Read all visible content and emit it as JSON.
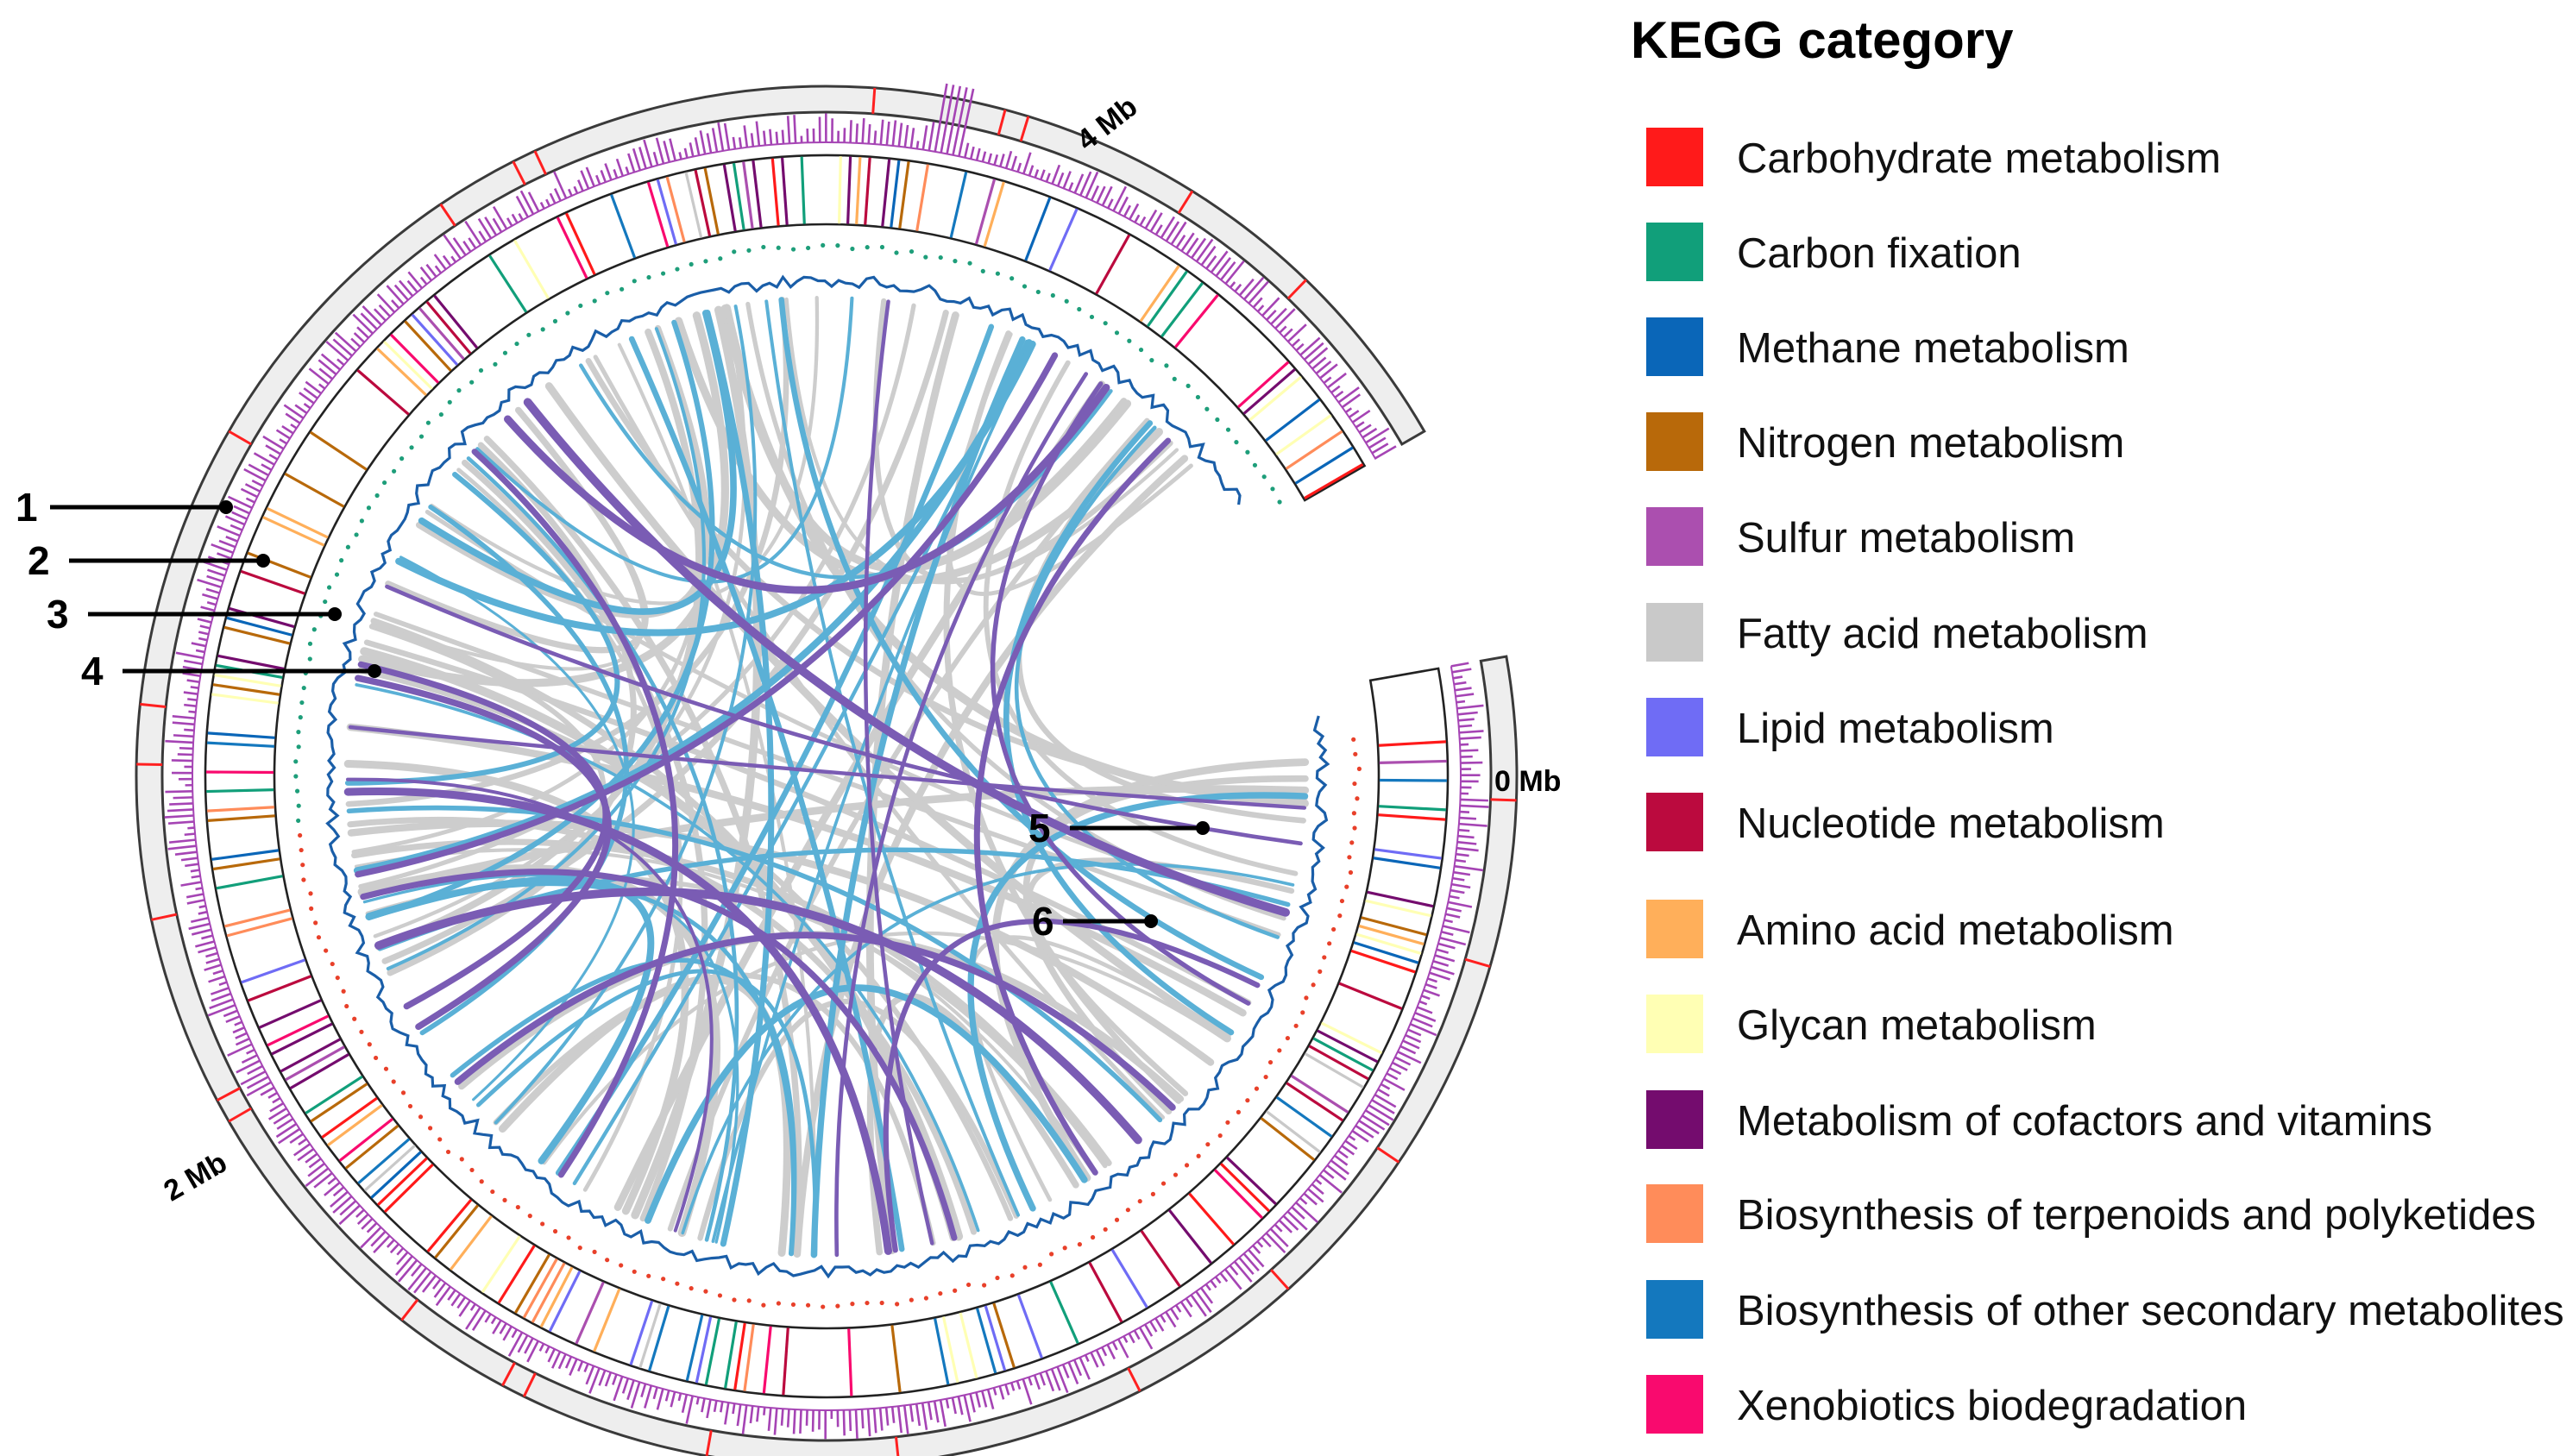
{
  "diagram": {
    "type": "circos-genome-map",
    "scale_labels": [
      "0 Mb",
      "2 Mb",
      "4 Mb"
    ],
    "track_labels": [
      "1",
      "2",
      "3",
      "4",
      "5",
      "6"
    ]
  },
  "colors": {
    "outer_ring_fill": "#eeeeee",
    "outer_ring_stroke": "#3a3a3a",
    "outer_mark": "#ff2020",
    "gc_skew_bar": "#a544b4",
    "cog_frame": "#222222",
    "gc_content_line": "#1a5ea8",
    "rna_dots_upper": "#1e9e7a",
    "rna_dots_lower": "#e8402a",
    "link_gray": "#cdcdcd",
    "link_blue": "#5ab0d6",
    "link_purple": "#7a5cb4"
  },
  "legend": {
    "title": "KEGG category",
    "items": [
      {
        "label": "Carbohydrate metabolism",
        "color": "#ff1a1a"
      },
      {
        "label": "Carbon fixation",
        "color": "#119f7a"
      },
      {
        "label": "Methane metabolism",
        "color": "#0a66b8"
      },
      {
        "label": "Nitrogen metabolism",
        "color": "#b8690a"
      },
      {
        "label": "Sulfur metabolism",
        "color": "#ab4faf"
      },
      {
        "label": "Fatty acid metabolism",
        "color": "#c9c9c9"
      },
      {
        "label": "Lipid metabolism",
        "color": "#6f6cf5"
      },
      {
        "label": "Nucleotide metabolism",
        "color": "#bb0a3e"
      },
      {
        "label": "Amino acid metabolism",
        "color": "#ffaf5a"
      },
      {
        "label": "Glycan metabolism",
        "color": "#ffffb4"
      },
      {
        "label": "Metabolism of cofactors and vitamins",
        "color": "#740c6e"
      },
      {
        "label": "Biosynthesis of terpenoids and polyketides",
        "color": "#ff8c5a"
      },
      {
        "label": "Biosynthesis of other secondary metabolites",
        "color": "#1478be"
      },
      {
        "label": "Xenobiotics biodegradation",
        "color": "#f90a6e"
      }
    ]
  }
}
